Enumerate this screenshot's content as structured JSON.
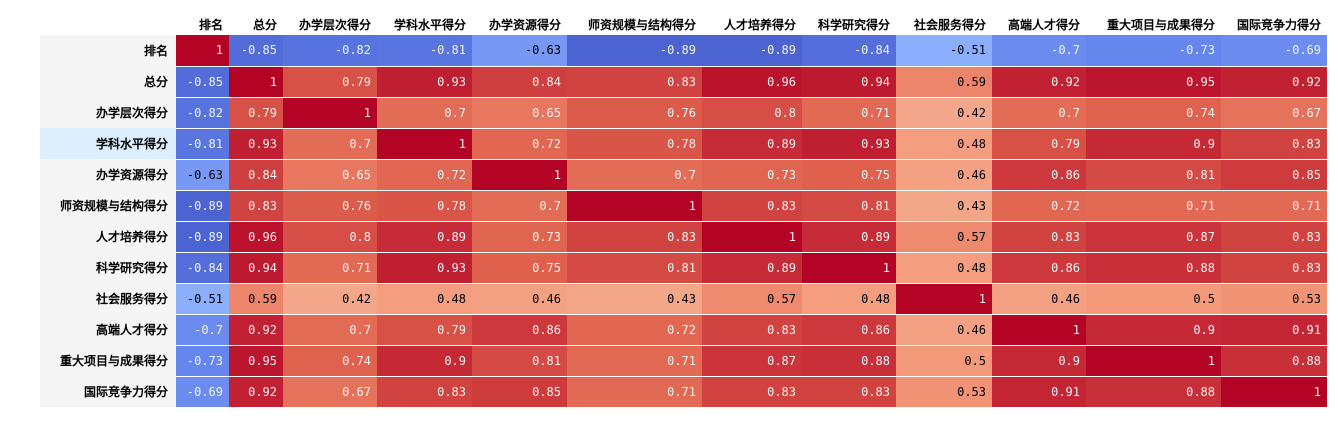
{
  "chart_data": {
    "type": "heatmap",
    "colormap": "coolwarm",
    "highlighted_row": "学科水平得分",
    "labels": [
      "排名",
      "总分",
      "办学层次得分",
      "学科水平得分",
      "办学资源得分",
      "师资规模与结构得分",
      "人才培养得分",
      "科学研究得分",
      "社会服务得分",
      "高端人才得分",
      "重大项目与成果得分",
      "国际竞争力得分"
    ],
    "matrix": [
      [
        1,
        -0.85,
        -0.82,
        -0.81,
        -0.63,
        -0.89,
        -0.89,
        -0.84,
        -0.51,
        -0.7,
        -0.73,
        -0.69
      ],
      [
        -0.85,
        1,
        0.79,
        0.93,
        0.84,
        0.83,
        0.96,
        0.94,
        0.59,
        0.92,
        0.95,
        0.92
      ],
      [
        -0.82,
        0.79,
        1,
        0.7,
        0.65,
        0.76,
        0.8,
        0.71,
        0.42,
        0.7,
        0.74,
        0.67
      ],
      [
        -0.81,
        0.93,
        0.7,
        1,
        0.72,
        0.78,
        0.89,
        0.93,
        0.48,
        0.79,
        0.9,
        0.83
      ],
      [
        -0.63,
        0.84,
        0.65,
        0.72,
        1,
        0.7,
        0.73,
        0.75,
        0.46,
        0.86,
        0.81,
        0.85
      ],
      [
        -0.89,
        0.83,
        0.76,
        0.78,
        0.7,
        1,
        0.83,
        0.81,
        0.43,
        0.72,
        0.71,
        0.71
      ],
      [
        -0.89,
        0.96,
        0.8,
        0.89,
        0.73,
        0.83,
        1,
        0.89,
        0.57,
        0.83,
        0.87,
        0.83
      ],
      [
        -0.84,
        0.94,
        0.71,
        0.93,
        0.75,
        0.81,
        0.89,
        1,
        0.48,
        0.86,
        0.88,
        0.83
      ],
      [
        -0.51,
        0.59,
        0.42,
        0.48,
        0.46,
        0.43,
        0.57,
        0.48,
        1,
        0.46,
        0.5,
        0.53
      ],
      [
        -0.7,
        0.92,
        0.7,
        0.79,
        0.86,
        0.72,
        0.83,
        0.86,
        0.46,
        1,
        0.9,
        0.91
      ],
      [
        -0.73,
        0.95,
        0.74,
        0.9,
        0.81,
        0.71,
        0.87,
        0.88,
        0.5,
        0.9,
        1,
        0.88
      ],
      [
        -0.69,
        0.92,
        0.67,
        0.83,
        0.85,
        0.71,
        0.83,
        0.83,
        0.53,
        0.91,
        0.88,
        1
      ]
    ]
  }
}
